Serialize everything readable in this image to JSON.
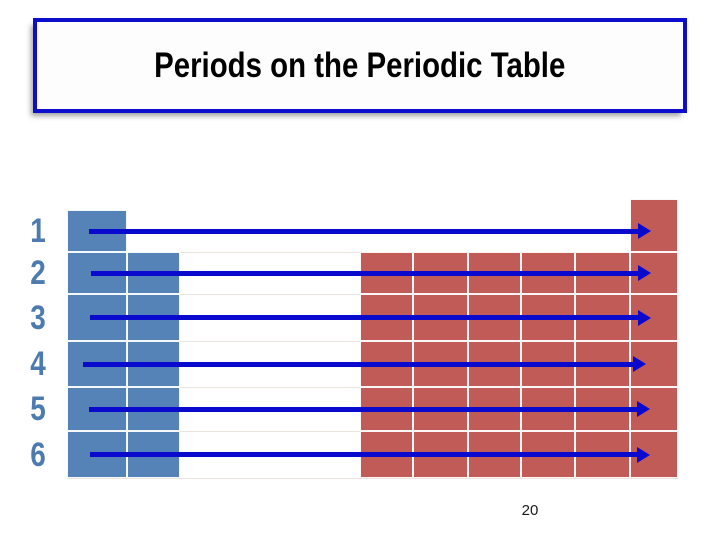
{
  "slide": {
    "title": "Periods on the Periodic Table",
    "page_number": "20"
  },
  "diagram": {
    "periods": [
      {
        "label": "1"
      },
      {
        "label": "2"
      },
      {
        "label": "3"
      },
      {
        "label": "4"
      },
      {
        "label": "5"
      },
      {
        "label": "6"
      }
    ]
  },
  "colors": {
    "s_block": "#5583b7",
    "p_block": "#c05b57",
    "arrow": "#0a0ace",
    "title_border": "#0d0dcd",
    "period_label": "#4d7bb0",
    "grid_line": "#ffffff",
    "faint_line": "#eae6df",
    "title_text": "#000000",
    "page_number_color": "#1a1a1a"
  }
}
